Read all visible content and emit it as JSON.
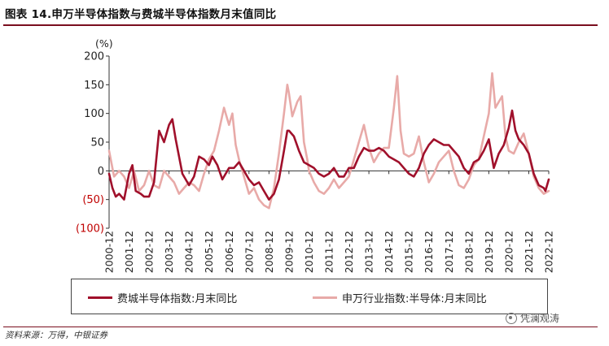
{
  "figure": {
    "title": "图表 14.申万半导体指数与费城半导体指数月末值同比",
    "source": "资料来源：万得，中银证券",
    "watermark": "凭澜观涛"
  },
  "chart_data": {
    "type": "line",
    "ylabel": "(%)",
    "ylim": [
      -100,
      200
    ],
    "y_ticks": [
      200,
      150,
      100,
      50,
      0,
      -50,
      -100
    ],
    "y_tick_labels": [
      "200",
      "150",
      "100",
      "50",
      "0",
      "(50)",
      "(100)"
    ],
    "negative_tick_color": "#c00000",
    "x_ticks": [
      "2000-12",
      "2001-12",
      "2002-12",
      "2003-12",
      "2004-12",
      "2005-12",
      "2006-12",
      "2007-12",
      "2008-12",
      "2009-12",
      "2010-12",
      "2011-12",
      "2012-12",
      "2013-12",
      "2014-12",
      "2015-12",
      "2016-12",
      "2017-12",
      "2018-12",
      "2019-12",
      "2020-12",
      "2021-12",
      "2022-12"
    ],
    "legend_position": "bottom",
    "grid": false,
    "series": [
      {
        "name": "费城半导体指数:月末同比",
        "color": "#a0102b",
        "points": [
          [
            "2000-12",
            -5
          ],
          [
            "2001-02",
            -30
          ],
          [
            "2001-04",
            -45
          ],
          [
            "2001-06",
            -40
          ],
          [
            "2001-09",
            -50
          ],
          [
            "2001-12",
            -5
          ],
          [
            "2002-02",
            10
          ],
          [
            "2002-04",
            -35
          ],
          [
            "2002-07",
            -40
          ],
          [
            "2002-09",
            -45
          ],
          [
            "2002-12",
            -45
          ],
          [
            "2003-03",
            -20
          ],
          [
            "2003-06",
            70
          ],
          [
            "2003-09",
            50
          ],
          [
            "2003-12",
            80
          ],
          [
            "2004-02",
            90
          ],
          [
            "2004-04",
            55
          ],
          [
            "2004-08",
            -5
          ],
          [
            "2004-12",
            -25
          ],
          [
            "2005-03",
            -10
          ],
          [
            "2005-06",
            25
          ],
          [
            "2005-09",
            20
          ],
          [
            "2005-12",
            10
          ],
          [
            "2006-02",
            25
          ],
          [
            "2006-05",
            10
          ],
          [
            "2006-08",
            -15
          ],
          [
            "2006-12",
            5
          ],
          [
            "2007-03",
            5
          ],
          [
            "2007-06",
            15
          ],
          [
            "2007-09",
            0
          ],
          [
            "2007-12",
            -15
          ],
          [
            "2008-03",
            -25
          ],
          [
            "2008-06",
            -20
          ],
          [
            "2008-09",
            -35
          ],
          [
            "2008-12",
            -50
          ],
          [
            "2009-03",
            -40
          ],
          [
            "2009-06",
            -15
          ],
          [
            "2009-09",
            35
          ],
          [
            "2009-11",
            70
          ],
          [
            "2009-12",
            70
          ],
          [
            "2010-03",
            60
          ],
          [
            "2010-06",
            35
          ],
          [
            "2010-09",
            15
          ],
          [
            "2010-12",
            10
          ],
          [
            "2011-03",
            5
          ],
          [
            "2011-06",
            -5
          ],
          [
            "2011-09",
            -10
          ],
          [
            "2011-12",
            -5
          ],
          [
            "2012-03",
            5
          ],
          [
            "2012-06",
            -10
          ],
          [
            "2012-09",
            -10
          ],
          [
            "2012-12",
            5
          ],
          [
            "2013-03",
            5
          ],
          [
            "2013-06",
            25
          ],
          [
            "2013-09",
            40
          ],
          [
            "2013-12",
            35
          ],
          [
            "2014-03",
            35
          ],
          [
            "2014-06",
            40
          ],
          [
            "2014-09",
            35
          ],
          [
            "2014-12",
            25
          ],
          [
            "2015-03",
            20
          ],
          [
            "2015-06",
            15
          ],
          [
            "2015-09",
            5
          ],
          [
            "2015-12",
            -5
          ],
          [
            "2016-03",
            -10
          ],
          [
            "2016-06",
            5
          ],
          [
            "2016-09",
            30
          ],
          [
            "2016-12",
            45
          ],
          [
            "2017-03",
            55
          ],
          [
            "2017-06",
            50
          ],
          [
            "2017-09",
            45
          ],
          [
            "2017-12",
            45
          ],
          [
            "2018-03",
            35
          ],
          [
            "2018-06",
            25
          ],
          [
            "2018-09",
            5
          ],
          [
            "2018-12",
            -5
          ],
          [
            "2019-03",
            15
          ],
          [
            "2019-06",
            20
          ],
          [
            "2019-09",
            35
          ],
          [
            "2019-12",
            55
          ],
          [
            "2020-03",
            5
          ],
          [
            "2020-06",
            30
          ],
          [
            "2020-09",
            45
          ],
          [
            "2020-12",
            75
          ],
          [
            "2021-02",
            105
          ],
          [
            "2021-04",
            70
          ],
          [
            "2021-06",
            55
          ],
          [
            "2021-09",
            45
          ],
          [
            "2021-12",
            30
          ],
          [
            "2022-03",
            -5
          ],
          [
            "2022-06",
            -25
          ],
          [
            "2022-09",
            -30
          ],
          [
            "2022-10",
            -35
          ],
          [
            "2022-12",
            -15
          ]
        ]
      },
      {
        "name": "申万行业指数:半导体:月末同比",
        "color": "#e8aaa8",
        "points": [
          [
            "2000-12",
            35
          ],
          [
            "2001-03",
            -10
          ],
          [
            "2001-06",
            0
          ],
          [
            "2001-09",
            -10
          ],
          [
            "2001-12",
            -30
          ],
          [
            "2002-03",
            0
          ],
          [
            "2002-06",
            -35
          ],
          [
            "2002-09",
            -25
          ],
          [
            "2002-12",
            0
          ],
          [
            "2003-03",
            -25
          ],
          [
            "2003-06",
            -30
          ],
          [
            "2003-09",
            0
          ],
          [
            "2003-12",
            -10
          ],
          [
            "2004-03",
            -20
          ],
          [
            "2004-06",
            -40
          ],
          [
            "2004-09",
            -30
          ],
          [
            "2004-12",
            -20
          ],
          [
            "2005-03",
            -25
          ],
          [
            "2005-06",
            -35
          ],
          [
            "2005-09",
            -5
          ],
          [
            "2005-12",
            20
          ],
          [
            "2006-03",
            35
          ],
          [
            "2006-06",
            70
          ],
          [
            "2006-09",
            110
          ],
          [
            "2006-12",
            80
          ],
          [
            "2007-02",
            100
          ],
          [
            "2007-04",
            45
          ],
          [
            "2007-06",
            20
          ],
          [
            "2007-09",
            -10
          ],
          [
            "2007-12",
            -40
          ],
          [
            "2008-03",
            -30
          ],
          [
            "2008-06",
            -50
          ],
          [
            "2008-09",
            -60
          ],
          [
            "2008-12",
            -65
          ],
          [
            "2009-03",
            -30
          ],
          [
            "2009-06",
            30
          ],
          [
            "2009-09",
            100
          ],
          [
            "2009-11",
            150
          ],
          [
            "2009-12",
            135
          ],
          [
            "2010-02",
            95
          ],
          [
            "2010-05",
            120
          ],
          [
            "2010-07",
            130
          ],
          [
            "2010-09",
            50
          ],
          [
            "2010-11",
            20
          ],
          [
            "2010-12",
            0
          ],
          [
            "2011-03",
            -20
          ],
          [
            "2011-06",
            -35
          ],
          [
            "2011-09",
            -40
          ],
          [
            "2011-12",
            -30
          ],
          [
            "2012-03",
            -15
          ],
          [
            "2012-06",
            -30
          ],
          [
            "2012-09",
            -20
          ],
          [
            "2012-12",
            -10
          ],
          [
            "2013-03",
            20
          ],
          [
            "2013-06",
            50
          ],
          [
            "2013-09",
            80
          ],
          [
            "2013-12",
            40
          ],
          [
            "2014-03",
            15
          ],
          [
            "2014-06",
            30
          ],
          [
            "2014-09",
            40
          ],
          [
            "2014-12",
            40
          ],
          [
            "2015-03",
            110
          ],
          [
            "2015-05",
            165
          ],
          [
            "2015-07",
            70
          ],
          [
            "2015-09",
            30
          ],
          [
            "2015-12",
            25
          ],
          [
            "2016-03",
            30
          ],
          [
            "2016-06",
            60
          ],
          [
            "2016-09",
            15
          ],
          [
            "2016-12",
            -20
          ],
          [
            "2017-03",
            -5
          ],
          [
            "2017-06",
            15
          ],
          [
            "2017-09",
            25
          ],
          [
            "2017-12",
            35
          ],
          [
            "2018-03",
            0
          ],
          [
            "2018-06",
            -25
          ],
          [
            "2018-09",
            -30
          ],
          [
            "2018-12",
            -15
          ],
          [
            "2019-03",
            10
          ],
          [
            "2019-06",
            20
          ],
          [
            "2019-09",
            60
          ],
          [
            "2019-12",
            100
          ],
          [
            "2020-02",
            170
          ],
          [
            "2020-04",
            110
          ],
          [
            "2020-06",
            120
          ],
          [
            "2020-08",
            130
          ],
          [
            "2020-10",
            60
          ],
          [
            "2020-12",
            35
          ],
          [
            "2021-03",
            30
          ],
          [
            "2021-06",
            50
          ],
          [
            "2021-09",
            65
          ],
          [
            "2021-12",
            30
          ],
          [
            "2022-03",
            -10
          ],
          [
            "2022-06",
            -30
          ],
          [
            "2022-09",
            -40
          ],
          [
            "2022-12",
            -35
          ]
        ]
      }
    ]
  }
}
